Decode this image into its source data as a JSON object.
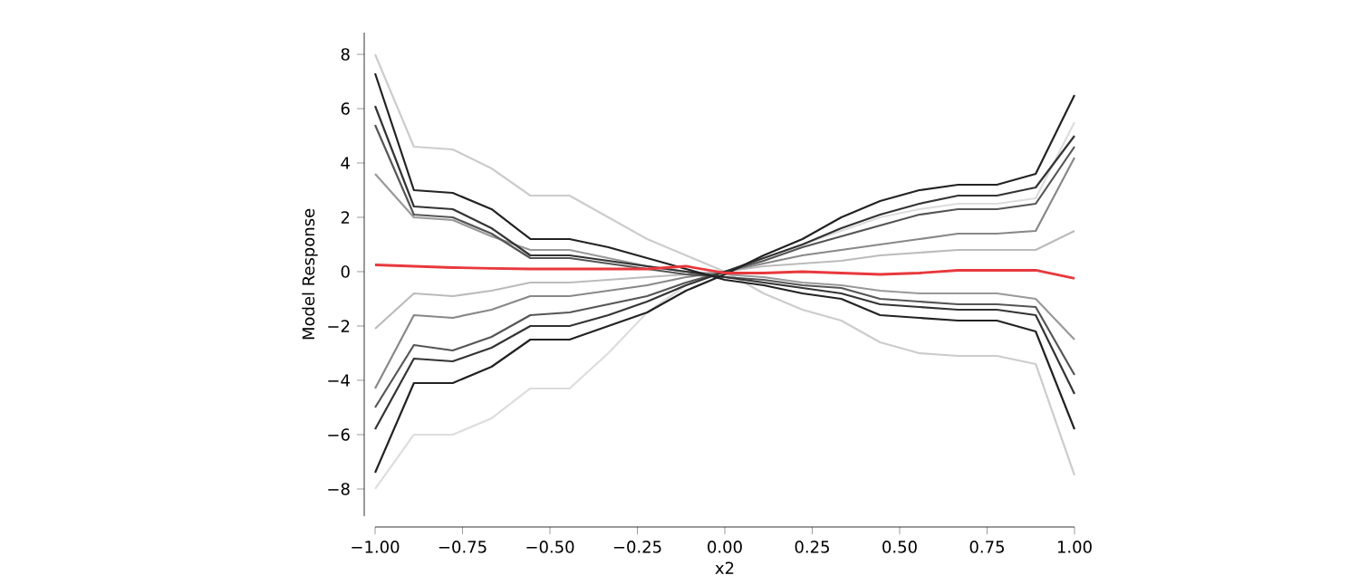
{
  "chart_data": {
    "type": "line",
    "xlabel": "x2",
    "ylabel": "Model Response",
    "x": [
      -1,
      -0.889,
      -0.778,
      -0.667,
      -0.556,
      -0.444,
      -0.333,
      -0.222,
      -0.111,
      0,
      0.111,
      0.222,
      0.333,
      0.444,
      0.556,
      0.667,
      0.778,
      0.889,
      1
    ],
    "series": [
      {
        "color": "#dddddd",
        "values": [
          -8.0,
          -6.0,
          -6.0,
          -5.4,
          -4.3,
          -4.3,
          -3.0,
          -1.5,
          -0.5,
          0.0,
          0.5,
          1.0,
          1.5,
          2.0,
          2.3,
          2.5,
          2.5,
          2.7,
          5.5
        ]
      },
      {
        "color": "#cccccc",
        "values": [
          8.0,
          4.6,
          4.5,
          3.8,
          2.8,
          2.8,
          2.0,
          1.2,
          0.6,
          0.0,
          -0.8,
          -1.4,
          -1.8,
          -2.6,
          -3.0,
          -3.1,
          -3.1,
          -3.4,
          -7.5
        ]
      },
      {
        "color": "#bbbbbb",
        "values": [
          -2.1,
          -0.8,
          -0.9,
          -0.7,
          -0.4,
          -0.4,
          -0.3,
          -0.2,
          -0.1,
          0.0,
          0.2,
          0.3,
          0.4,
          0.6,
          0.7,
          0.8,
          0.8,
          0.8,
          1.5
        ]
      },
      {
        "color": "#999999",
        "values": [
          3.6,
          2.0,
          1.9,
          1.3,
          0.8,
          0.8,
          0.5,
          0.2,
          0.0,
          -0.1,
          -0.2,
          -0.4,
          -0.5,
          -0.7,
          -0.8,
          -0.8,
          -0.8,
          -1.0,
          -2.5
        ]
      },
      {
        "color": "#888888",
        "values": [
          -4.3,
          -1.6,
          -1.7,
          -1.4,
          -0.9,
          -0.9,
          -0.7,
          -0.5,
          -0.2,
          0.0,
          0.3,
          0.6,
          0.8,
          1.0,
          1.2,
          1.4,
          1.4,
          1.5,
          4.2
        ]
      },
      {
        "color": "#555555",
        "values": [
          -5.0,
          -2.7,
          -2.9,
          -2.4,
          -1.6,
          -1.5,
          -1.2,
          -0.9,
          -0.4,
          0.0,
          0.4,
          0.9,
          1.3,
          1.7,
          2.1,
          2.3,
          2.3,
          2.5,
          4.6
        ]
      },
      {
        "color": "#555555",
        "values": [
          5.4,
          2.1,
          2.0,
          1.4,
          0.5,
          0.5,
          0.3,
          0.1,
          -0.1,
          -0.2,
          -0.3,
          -0.5,
          -0.6,
          -1.0,
          -1.1,
          -1.2,
          -1.2,
          -1.3,
          -3.8
        ]
      },
      {
        "color": "#333333",
        "values": [
          -5.8,
          -3.2,
          -3.3,
          -2.8,
          -2.0,
          -2.0,
          -1.6,
          -1.1,
          -0.5,
          0.0,
          0.5,
          1.0,
          1.6,
          2.1,
          2.5,
          2.8,
          2.8,
          3.1,
          5.0
        ]
      },
      {
        "color": "#333333",
        "values": [
          6.1,
          2.4,
          2.3,
          1.6,
          0.6,
          0.6,
          0.4,
          0.2,
          0.0,
          -0.2,
          -0.4,
          -0.6,
          -0.8,
          -1.2,
          -1.3,
          -1.4,
          -1.4,
          -1.6,
          -4.5
        ]
      },
      {
        "color": "#222222",
        "values": [
          -7.4,
          -4.1,
          -4.1,
          -3.5,
          -2.5,
          -2.5,
          -2.0,
          -1.5,
          -0.7,
          -0.1,
          0.6,
          1.2,
          2.0,
          2.6,
          3.0,
          3.2,
          3.2,
          3.6,
          6.5
        ]
      },
      {
        "color": "#222222",
        "values": [
          7.3,
          3.0,
          2.9,
          2.3,
          1.2,
          1.2,
          0.9,
          0.5,
          0.1,
          -0.3,
          -0.5,
          -0.8,
          -1.0,
          -1.6,
          -1.7,
          -1.8,
          -1.8,
          -2.2,
          -5.8
        ]
      },
      {
        "color": "#e8383d",
        "values": [
          0.25,
          0.2,
          0.15,
          0.12,
          0.1,
          0.1,
          0.1,
          0.1,
          0.2,
          -0.05,
          -0.05,
          0.0,
          -0.05,
          -0.1,
          -0.05,
          0.05,
          0.05,
          0.05,
          -0.25
        ]
      }
    ],
    "xlim": [
      -1,
      1
    ],
    "ylim": [
      -9,
      8.8
    ],
    "xticks": [
      {
        "value": -1,
        "label": "−1.00"
      },
      {
        "value": -0.75,
        "label": "−0.75"
      },
      {
        "value": -0.5,
        "label": "−0.50"
      },
      {
        "value": -0.25,
        "label": "−0.25"
      },
      {
        "value": 0,
        "label": "0.00"
      },
      {
        "value": 0.25,
        "label": "0.25"
      },
      {
        "value": 0.5,
        "label": "0.50"
      },
      {
        "value": 0.75,
        "label": "0.75"
      },
      {
        "value": 1,
        "label": "1.00"
      }
    ],
    "yticks": [
      {
        "value": -8,
        "label": "−8"
      },
      {
        "value": -6,
        "label": "−6"
      },
      {
        "value": -4,
        "label": "−4"
      },
      {
        "value": -2,
        "label": "−2"
      },
      0,
      2,
      4,
      6,
      8
    ]
  }
}
